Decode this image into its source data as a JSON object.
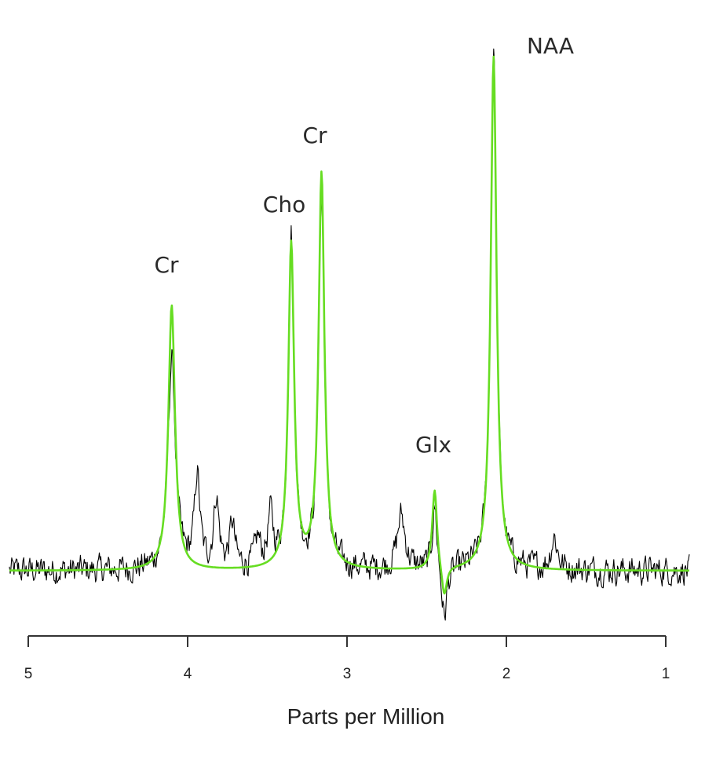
{
  "chart_data": {
    "type": "line",
    "title": "",
    "xlabel": "Parts per Million",
    "ylabel": "",
    "x_reversed": true,
    "xlim": [
      5,
      0.85
    ],
    "ylim": [
      -0.12,
      1.0
    ],
    "x_ticks": [
      5,
      4,
      3,
      2,
      1
    ],
    "x_tick_labels": [
      "5",
      "4",
      "3",
      "2",
      "1"
    ],
    "y_axis_visible": false,
    "grid": false,
    "legend": "none",
    "baseline": 0.0,
    "peak_annotations": [
      {
        "label": "Cr",
        "ppm": 4.1
      },
      {
        "label": "Cho",
        "ppm": 3.35
      },
      {
        "label": "Cr",
        "ppm": 3.15
      },
      {
        "label": "Glx",
        "ppm": 2.42
      },
      {
        "label": "NAA",
        "ppm": 1.78
      }
    ],
    "series": [
      {
        "color": "#000000",
        "style": "noisy-measured",
        "components": [
          {
            "ppm": 4.1,
            "height": 0.39,
            "width": 0.028
          },
          {
            "ppm": 3.94,
            "height": 0.17,
            "width": 0.02
          },
          {
            "ppm": 3.82,
            "height": 0.13,
            "width": 0.02
          },
          {
            "ppm": 3.72,
            "height": 0.08,
            "width": 0.02
          },
          {
            "ppm": 3.56,
            "height": 0.05,
            "width": 0.02
          },
          {
            "ppm": 3.48,
            "height": 0.09,
            "width": 0.02
          },
          {
            "ppm": 3.35,
            "height": 0.61,
            "width": 0.022
          },
          {
            "ppm": 3.16,
            "height": 0.68,
            "width": 0.022
          },
          {
            "ppm": 2.66,
            "height": 0.1,
            "width": 0.03
          },
          {
            "ppm": 2.45,
            "height": 0.12,
            "width": 0.018
          },
          {
            "ppm": 2.39,
            "height": -0.1,
            "width": 0.02
          },
          {
            "ppm": 2.08,
            "height": 0.97,
            "width": 0.022
          },
          {
            "ppm": 1.7,
            "height": 0.06,
            "width": 0.025
          }
        ],
        "noise_amplitude": 0.022
      },
      {
        "color": "#66dd22",
        "style": "fitted",
        "components": [
          {
            "ppm": 4.1,
            "height": 0.49,
            "width": 0.025
          },
          {
            "ppm": 3.35,
            "height": 0.6,
            "width": 0.022
          },
          {
            "ppm": 3.16,
            "height": 0.73,
            "width": 0.022
          },
          {
            "ppm": 2.45,
            "height": 0.15,
            "width": 0.018
          },
          {
            "ppm": 2.39,
            "height": -0.06,
            "width": 0.02
          },
          {
            "ppm": 2.08,
            "height": 0.95,
            "width": 0.022
          }
        ]
      }
    ]
  }
}
